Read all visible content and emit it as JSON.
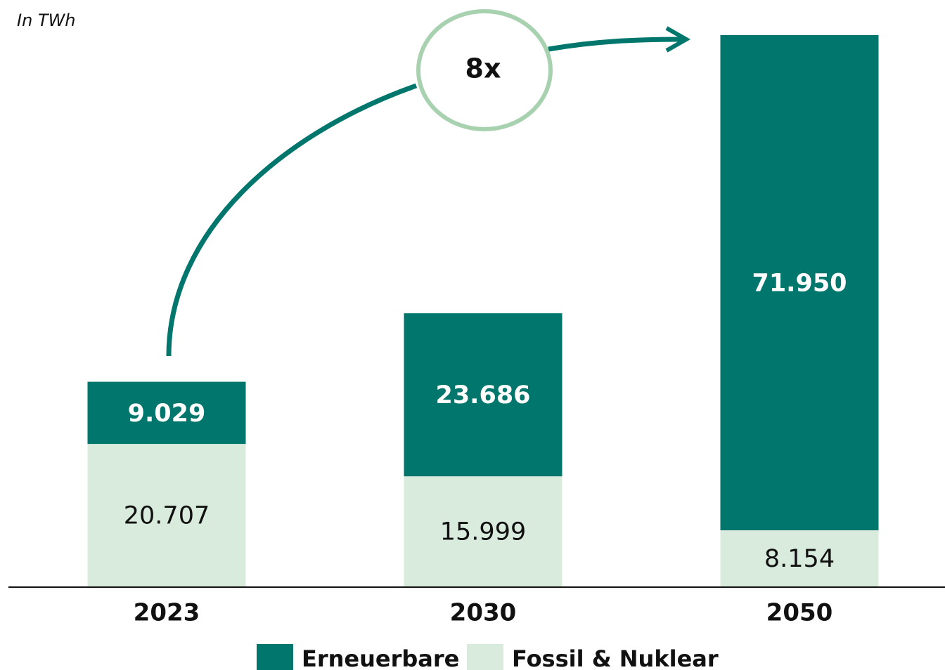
{
  "chart_data": {
    "type": "stacked_bar",
    "subtitle": "In TWh",
    "annotation": "8x",
    "categories": [
      "2023",
      "2030",
      "2050"
    ],
    "series": [
      {
        "name": "Fossil & Nuklear",
        "color": "#d9ebdd",
        "label_color": "#111111",
        "values": [
          20707,
          15999,
          8154
        ],
        "value_labels": [
          "20.707",
          "15.999",
          "8.154"
        ]
      },
      {
        "name": "Erneuerbare",
        "color": "#00766c",
        "label_color": "#ffffff",
        "values": [
          9029,
          23686,
          71950
        ],
        "value_labels": [
          "9.029",
          "23.686",
          "71.950"
        ]
      }
    ],
    "legend_order": [
      1,
      0
    ]
  }
}
